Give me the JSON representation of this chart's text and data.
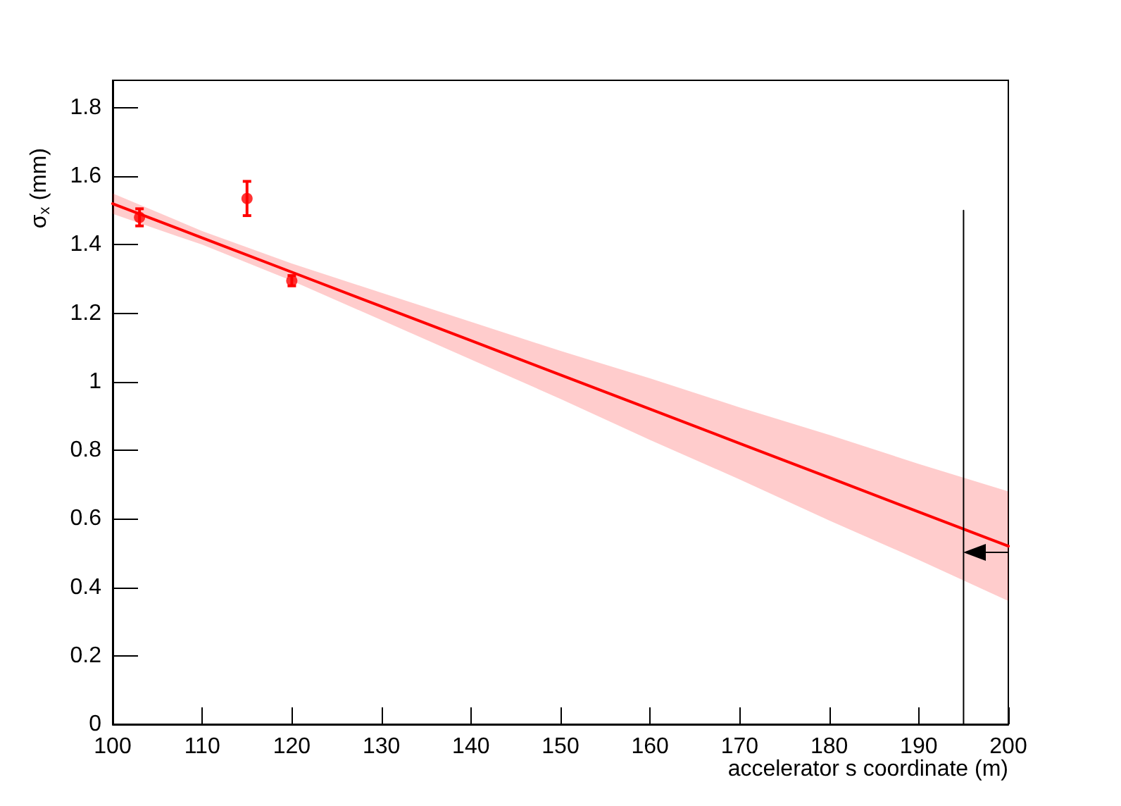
{
  "chart_data": {
    "type": "scatter",
    "xlabel": "accelerator s coordinate (m)",
    "ylabel": "σ$_{x}$ (mm)",
    "xlim": [
      100,
      200
    ],
    "ylim": [
      0,
      1.88
    ],
    "xticks": [
      100,
      110,
      120,
      130,
      140,
      150,
      160,
      170,
      180,
      190,
      200
    ],
    "yticks": [
      0,
      0.2,
      0.4,
      0.6,
      0.8,
      1,
      1.2,
      1.4,
      1.6,
      1.8
    ],
    "series": [
      {
        "marker": "circle",
        "color": "#ff0000",
        "x": [
          103,
          115,
          120
        ],
        "values": [
          1.48,
          1.535,
          1.295
        ],
        "errors": [
          0.025,
          0.05,
          0.015
        ]
      },
      {
        "type": "line",
        "marker": "none",
        "color": "#ff0000",
        "x": [
          100,
          110,
          120,
          130,
          140,
          150,
          160,
          170,
          180,
          190,
          200
        ],
        "values": [
          1.52,
          1.42,
          1.32,
          1.22,
          1.12,
          1.02,
          0.92,
          0.82,
          0.72,
          0.62,
          0.52
        ],
        "lower": [
          1.49,
          1.4,
          1.295,
          1.18,
          1.065,
          0.95,
          0.83,
          0.715,
          0.595,
          0.48,
          0.36
        ],
        "upper": [
          1.55,
          1.44,
          1.345,
          1.26,
          1.175,
          1.09,
          1.01,
          0.925,
          0.845,
          0.76,
          0.68
        ]
      },
      {
        "type": "line",
        "marker": "none",
        "color": "#000000",
        "x": [
          195,
          195
        ],
        "values": [
          0,
          1.5
        ]
      }
    ]
  }
}
